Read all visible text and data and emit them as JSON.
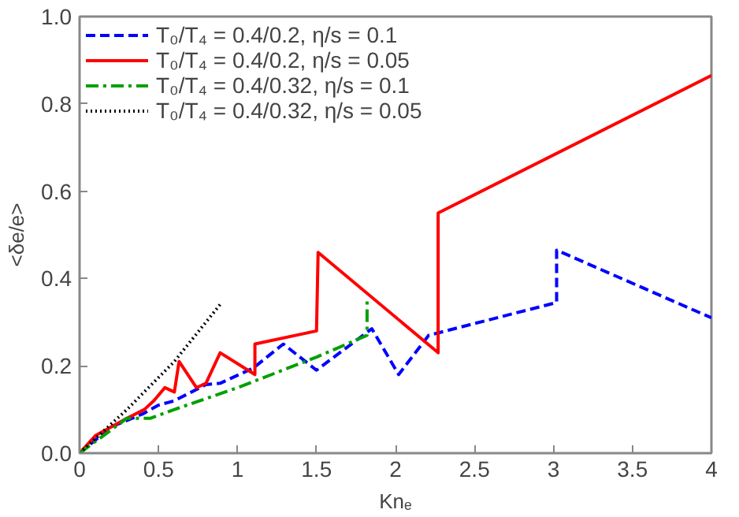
{
  "chart_data": {
    "type": "line",
    "xlabel": "Knₑ",
    "ylabel": "<δe/e>",
    "xlim": [
      0,
      4
    ],
    "ylim": [
      0,
      1
    ],
    "xticks": [
      0,
      0.5,
      1,
      1.5,
      2,
      2.5,
      3,
      3.5,
      4
    ],
    "yticks": [
      {
        "value": 0,
        "label": "0.0"
      },
      0.2,
      0.4,
      0.6,
      0.8,
      {
        "value": 1,
        "label": "1.0"
      }
    ],
    "legend": "top left",
    "grid": false,
    "series": [
      {
        "name": "T₀/T₄ = 0.4/0.2, η/s = 0.1",
        "color": "#0000ff",
        "line_style": "dashed",
        "x": [
          0,
          0.2,
          0.4,
          0.5,
          0.6,
          0.8,
          0.89,
          1.1,
          1.29,
          1.5,
          1.85,
          2.02,
          2.21,
          3.02,
          3.02,
          4
        ],
        "values": [
          0,
          0.06,
          0.09,
          0.11,
          0.12,
          0.157,
          0.16,
          0.195,
          0.25,
          0.19,
          0.285,
          0.18,
          0.27,
          0.345,
          0.465,
          0.31
        ]
      },
      {
        "name": "T₀/T₄ = 0.4/0.2, η/s = 0.05",
        "color": "#ff0000",
        "line_style": "solid",
        "x": [
          0,
          0.1,
          0.2,
          0.3,
          0.41,
          0.47,
          0.54,
          0.6,
          0.63,
          0.74,
          0.8,
          0.89,
          1.11,
          1.11,
          1.5,
          1.51,
          2.27,
          2.27,
          4
        ],
        "values": [
          0,
          0.04,
          0.06,
          0.08,
          0.1,
          0.12,
          0.15,
          0.14,
          0.21,
          0.15,
          0.16,
          0.23,
          0.18,
          0.25,
          0.28,
          0.46,
          0.23,
          0.55,
          0.865
        ]
      },
      {
        "name": "T₀/T₄ = 0.4/0.32, η/s = 0.1",
        "color": "#00a000",
        "line_style": "dashdot",
        "x": [
          0,
          0.3,
          0.45,
          0.6,
          1.0,
          1.5,
          1.82,
          1.82
        ],
        "values": [
          0,
          0.08,
          0.08,
          0.1,
          0.15,
          0.22,
          0.27,
          0.35
        ]
      },
      {
        "name": "T₀/T₄ = 0.4/0.32, η/s = 0.05",
        "color": "#000000",
        "line_style": "dotted",
        "x": [
          0,
          0.3,
          0.6,
          0.9
        ],
        "values": [
          0,
          0.1,
          0.21,
          0.345
        ]
      }
    ]
  }
}
